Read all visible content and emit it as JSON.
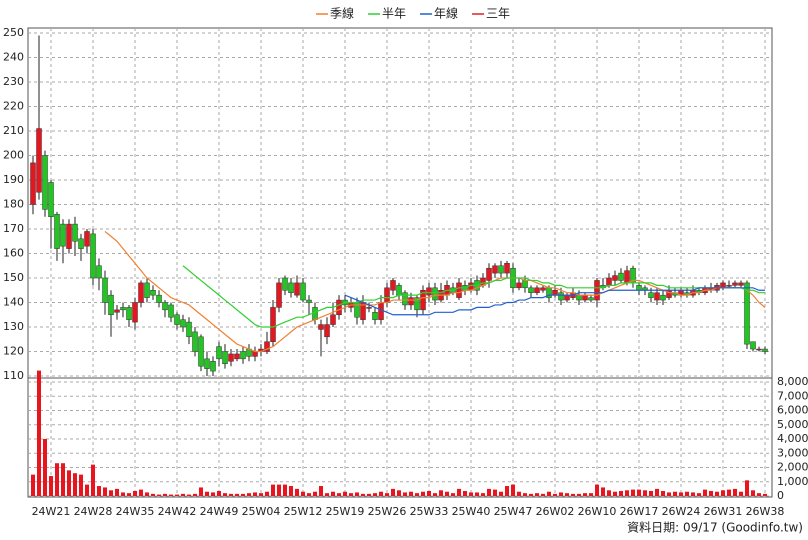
{
  "chart_data": {
    "type": "candlestick",
    "footer": "資料日期: 09/17 (Goodinfo.tw)",
    "categories": [
      null,
      null,
      null,
      "24W21",
      null,
      null,
      null,
      null,
      null,
      null,
      "24W28",
      null,
      null,
      null,
      null,
      null,
      null,
      "24W35",
      null,
      null,
      null,
      null,
      null,
      null,
      "24W42",
      null,
      null,
      null,
      null,
      null,
      null,
      "24W49",
      null,
      null,
      null,
      null,
      null,
      null,
      "25W04",
      null,
      null,
      null,
      null,
      null,
      null,
      "25W12",
      null,
      null,
      null,
      null,
      null,
      null,
      "25W19",
      null,
      null,
      null,
      null,
      null,
      null,
      "25W26",
      null,
      null,
      null,
      null,
      null,
      null,
      "25W33",
      null,
      null,
      null,
      null,
      null,
      null,
      "25W40",
      null,
      null,
      null,
      null,
      null,
      null,
      "25W47",
      null,
      null,
      null,
      null,
      null,
      null,
      "26W02",
      null,
      null,
      null,
      null,
      null,
      null,
      "26W10",
      null,
      null,
      null,
      null,
      null,
      null,
      "26W17",
      null,
      null,
      null,
      null,
      null,
      null,
      "26W24",
      null,
      null,
      null,
      null,
      null,
      null,
      "26W31",
      null,
      null,
      null,
      null,
      null,
      null,
      "26W38"
    ],
    "open": [
      180,
      185,
      200,
      189,
      176,
      172,
      162,
      172,
      166,
      163,
      168,
      155,
      150,
      143,
      136,
      138,
      138,
      132,
      140,
      148,
      145,
      143,
      140,
      139,
      135,
      133,
      132,
      128,
      126,
      117,
      116,
      122,
      120,
      116,
      117,
      120,
      121,
      118,
      120,
      120,
      124,
      138,
      150,
      148,
      143,
      148,
      141,
      138,
      129,
      126,
      131,
      135,
      141,
      138,
      140,
      133,
      138,
      136,
      133,
      140,
      145,
      147,
      144,
      139,
      142,
      137,
      143,
      146,
      141,
      143,
      146,
      142,
      147,
      145,
      149,
      147,
      149,
      152,
      155,
      152,
      154,
      146,
      149,
      146,
      144,
      145,
      146,
      143,
      144,
      141,
      142,
      143,
      141,
      142,
      141,
      147,
      147,
      149,
      152,
      148,
      154,
      147,
      146,
      144,
      141,
      143,
      142,
      144,
      143,
      144,
      143,
      145,
      144,
      145,
      145,
      146,
      147,
      147,
      147,
      148,
      124,
      121,
      121
    ],
    "close": [
      197,
      211,
      178,
      175,
      162,
      163,
      172,
      165,
      162,
      169,
      150,
      150,
      140,
      135,
      137,
      137,
      133,
      140,
      148,
      142,
      143,
      140,
      137,
      134,
      131,
      130,
      126,
      120,
      114,
      113,
      112,
      117,
      115,
      119,
      119,
      117,
      118,
      120,
      121,
      124,
      138,
      148,
      145,
      144,
      148,
      141,
      140,
      133,
      131,
      131,
      135,
      141,
      139,
      140,
      134,
      140,
      138,
      133,
      140,
      146,
      149,
      143,
      139,
      142,
      137,
      145,
      146,
      141,
      145,
      147,
      144,
      148,
      145,
      148,
      145,
      150,
      154,
      155,
      152,
      156,
      146,
      148,
      146,
      144,
      146,
      146,
      142,
      145,
      141,
      143,
      144,
      141,
      143,
      141,
      149,
      146,
      150,
      151,
      149,
      153,
      148,
      145,
      145,
      142,
      144,
      141,
      145,
      143,
      145,
      143,
      145,
      144,
      146,
      146,
      147,
      148,
      147,
      148,
      148,
      123,
      121,
      121,
      120
    ],
    "high": [
      200,
      249,
      202,
      190,
      177,
      174,
      174,
      175,
      168,
      170,
      170,
      158,
      153,
      145,
      139,
      140,
      139,
      142,
      149,
      150,
      147,
      145,
      141,
      140,
      136,
      135,
      134,
      130,
      127,
      120,
      118,
      124,
      123,
      121,
      121,
      122,
      123,
      122,
      123,
      128,
      141,
      150,
      151,
      150,
      151,
      150,
      143,
      140,
      133,
      134,
      140,
      143,
      143,
      142,
      142,
      143,
      140,
      138,
      143,
      148,
      150,
      148,
      145,
      144,
      143,
      147,
      148,
      148,
      148,
      149,
      148,
      150,
      149,
      150,
      151,
      152,
      156,
      156,
      157,
      157,
      156,
      150,
      151,
      147,
      147,
      147,
      147,
      147,
      146,
      144,
      146,
      145,
      144,
      143,
      150,
      150,
      152,
      153,
      154,
      155,
      155,
      148,
      147,
      146,
      146,
      145,
      147,
      146,
      146,
      146,
      147,
      146,
      147,
      148,
      148,
      149,
      149,
      149,
      149,
      149,
      124,
      122,
      122
    ],
    "low": [
      176,
      182,
      175,
      162,
      157,
      156,
      160,
      159,
      157,
      160,
      147,
      145,
      135,
      126,
      133,
      134,
      130,
      129,
      138,
      140,
      141,
      138,
      134,
      132,
      129,
      128,
      123,
      118,
      112,
      110,
      110,
      114,
      113,
      114,
      116,
      115,
      116,
      116,
      118,
      119,
      122,
      136,
      143,
      142,
      142,
      140,
      135,
      131,
      118,
      123,
      130,
      133,
      136,
      136,
      131,
      131,
      136,
      131,
      131,
      138,
      143,
      141,
      137,
      137,
      134,
      135,
      140,
      139,
      140,
      141,
      143,
      141,
      143,
      144,
      143,
      146,
      146,
      150,
      150,
      150,
      144,
      145,
      144,
      142,
      143,
      144,
      140,
      142,
      139,
      140,
      141,
      139,
      140,
      140,
      138,
      145,
      146,
      147,
      148,
      147,
      146,
      143,
      143,
      140,
      139,
      139,
      141,
      142,
      142,
      142,
      142,
      143,
      143,
      144,
      144,
      145,
      146,
      146,
      146,
      121,
      120,
      120,
      119
    ],
    "volume": [
      1500,
      8800,
      4000,
      1400,
      2300,
      2300,
      1800,
      1600,
      1500,
      800,
      2200,
      700,
      600,
      400,
      500,
      250,
      200,
      350,
      450,
      250,
      150,
      100,
      150,
      100,
      100,
      150,
      100,
      150,
      600,
      300,
      250,
      350,
      200,
      150,
      150,
      150,
      200,
      250,
      200,
      300,
      800,
      800,
      800,
      700,
      500,
      300,
      200,
      300,
      700,
      200,
      300,
      200,
      300,
      200,
      250,
      150,
      150,
      200,
      300,
      200,
      500,
      400,
      250,
      300,
      200,
      300,
      350,
      200,
      400,
      300,
      200,
      500,
      350,
      250,
      250,
      200,
      500,
      450,
      300,
      700,
      800,
      300,
      200,
      150,
      200,
      150,
      300,
      150,
      250,
      200,
      150,
      150,
      200,
      200,
      800,
      600,
      400,
      300,
      350,
      400,
      450,
      450,
      400,
      350,
      500,
      350,
      250,
      300,
      250,
      300,
      250,
      200,
      450,
      350,
      300,
      400,
      450,
      500,
      300,
      1100,
      400,
      200,
      150
    ],
    "up_color": "#e8141e",
    "down_color": "#1ec81e",
    "volume_color": "#e8141e",
    "series": [
      {
        "name": "季線",
        "color": "#f08030",
        "values": [
          null,
          null,
          null,
          null,
          null,
          null,
          null,
          null,
          null,
          null,
          null,
          null,
          169,
          167,
          165,
          162,
          159,
          156,
          153,
          150,
          148,
          146,
          144,
          142,
          141,
          140,
          139,
          137,
          135,
          133,
          131,
          129,
          127,
          125,
          123,
          122,
          121,
          120,
          120,
          121,
          122,
          124,
          126,
          128,
          130,
          131,
          132,
          133,
          134,
          135,
          136,
          137,
          138,
          139,
          139,
          139,
          139,
          139,
          140,
          140,
          141,
          141,
          141,
          141,
          141,
          142,
          142,
          143,
          143,
          143,
          144,
          144,
          145,
          145,
          146,
          147,
          148,
          149,
          150,
          150,
          150,
          150,
          149,
          149,
          148,
          147,
          146,
          146,
          145,
          144,
          144,
          143,
          143,
          143,
          143,
          144,
          145,
          146,
          147,
          148,
          149,
          149,
          148,
          147,
          146,
          145,
          144,
          144,
          143,
          143,
          144,
          144,
          145,
          145,
          146,
          146,
          146,
          146,
          146,
          145,
          143,
          140,
          138
        ]
      },
      {
        "name": "半年",
        "color": "#30d030",
        "values": [
          null,
          null,
          null,
          null,
          null,
          null,
          null,
          null,
          null,
          null,
          null,
          null,
          null,
          null,
          null,
          null,
          null,
          null,
          null,
          null,
          null,
          null,
          null,
          null,
          null,
          155,
          153,
          151,
          149,
          147,
          145,
          143,
          141,
          139,
          137,
          135,
          133,
          131,
          130,
          130,
          130,
          131,
          132,
          133,
          134,
          134,
          135,
          136,
          137,
          138,
          138,
          139,
          140,
          140,
          140,
          141,
          141,
          141,
          142,
          142,
          142,
          143,
          143,
          143,
          143,
          144,
          144,
          144,
          144,
          145,
          145,
          146,
          146,
          147,
          147,
          148,
          148,
          149,
          149,
          150,
          150,
          150,
          150,
          149,
          149,
          148,
          148,
          147,
          147,
          146,
          146,
          146,
          146,
          146,
          146,
          146,
          147,
          147,
          148,
          148,
          148,
          148,
          148,
          148,
          147,
          147,
          146,
          146,
          146,
          146,
          146,
          146,
          146,
          146,
          146,
          146,
          146,
          146,
          146,
          145,
          145,
          144,
          144
        ]
      },
      {
        "name": "年線",
        "color": "#2060d0",
        "values": [
          null,
          null,
          null,
          null,
          null,
          null,
          null,
          null,
          null,
          null,
          null,
          null,
          null,
          null,
          null,
          null,
          null,
          null,
          null,
          null,
          null,
          null,
          null,
          null,
          null,
          null,
          null,
          null,
          null,
          null,
          null,
          null,
          null,
          null,
          null,
          null,
          null,
          null,
          null,
          null,
          null,
          null,
          null,
          null,
          null,
          null,
          null,
          null,
          null,
          null,
          null,
          null,
          143,
          142,
          141,
          140,
          139,
          138,
          137,
          136,
          135,
          135,
          135,
          135,
          135,
          135,
          135,
          136,
          136,
          136,
          136,
          137,
          137,
          137,
          138,
          138,
          138,
          139,
          139,
          140,
          140,
          141,
          141,
          142,
          142,
          142,
          143,
          143,
          143,
          143,
          143,
          144,
          144,
          144,
          144,
          144,
          145,
          145,
          145,
          145,
          145,
          145,
          145,
          145,
          145,
          145,
          145,
          145,
          145,
          145,
          145,
          146,
          146,
          146,
          146,
          146,
          146,
          146,
          146,
          146,
          146,
          145,
          145
        ]
      },
      {
        "name": "三年",
        "color": "#e02020"
      }
    ],
    "ylim": [
      110,
      250
    ],
    "yticks": [
      110,
      120,
      130,
      140,
      150,
      160,
      170,
      180,
      190,
      200,
      210,
      220,
      230,
      240,
      250
    ],
    "y2lim": [
      0,
      8000
    ],
    "y2ticks": [
      0,
      {
        "value": 1000,
        "label": "1,000"
      },
      {
        "value": 2000,
        "label": "2,000"
      },
      {
        "value": 3000,
        "label": "3,000"
      },
      {
        "value": 4000,
        "label": "4,000"
      },
      {
        "value": 5000,
        "label": "5,000"
      },
      {
        "value": 6000,
        "label": "6,000"
      },
      {
        "value": 7000,
        "label": "7,000"
      },
      {
        "value": 8000,
        "label": "8,000"
      }
    ],
    "grid": true
  }
}
